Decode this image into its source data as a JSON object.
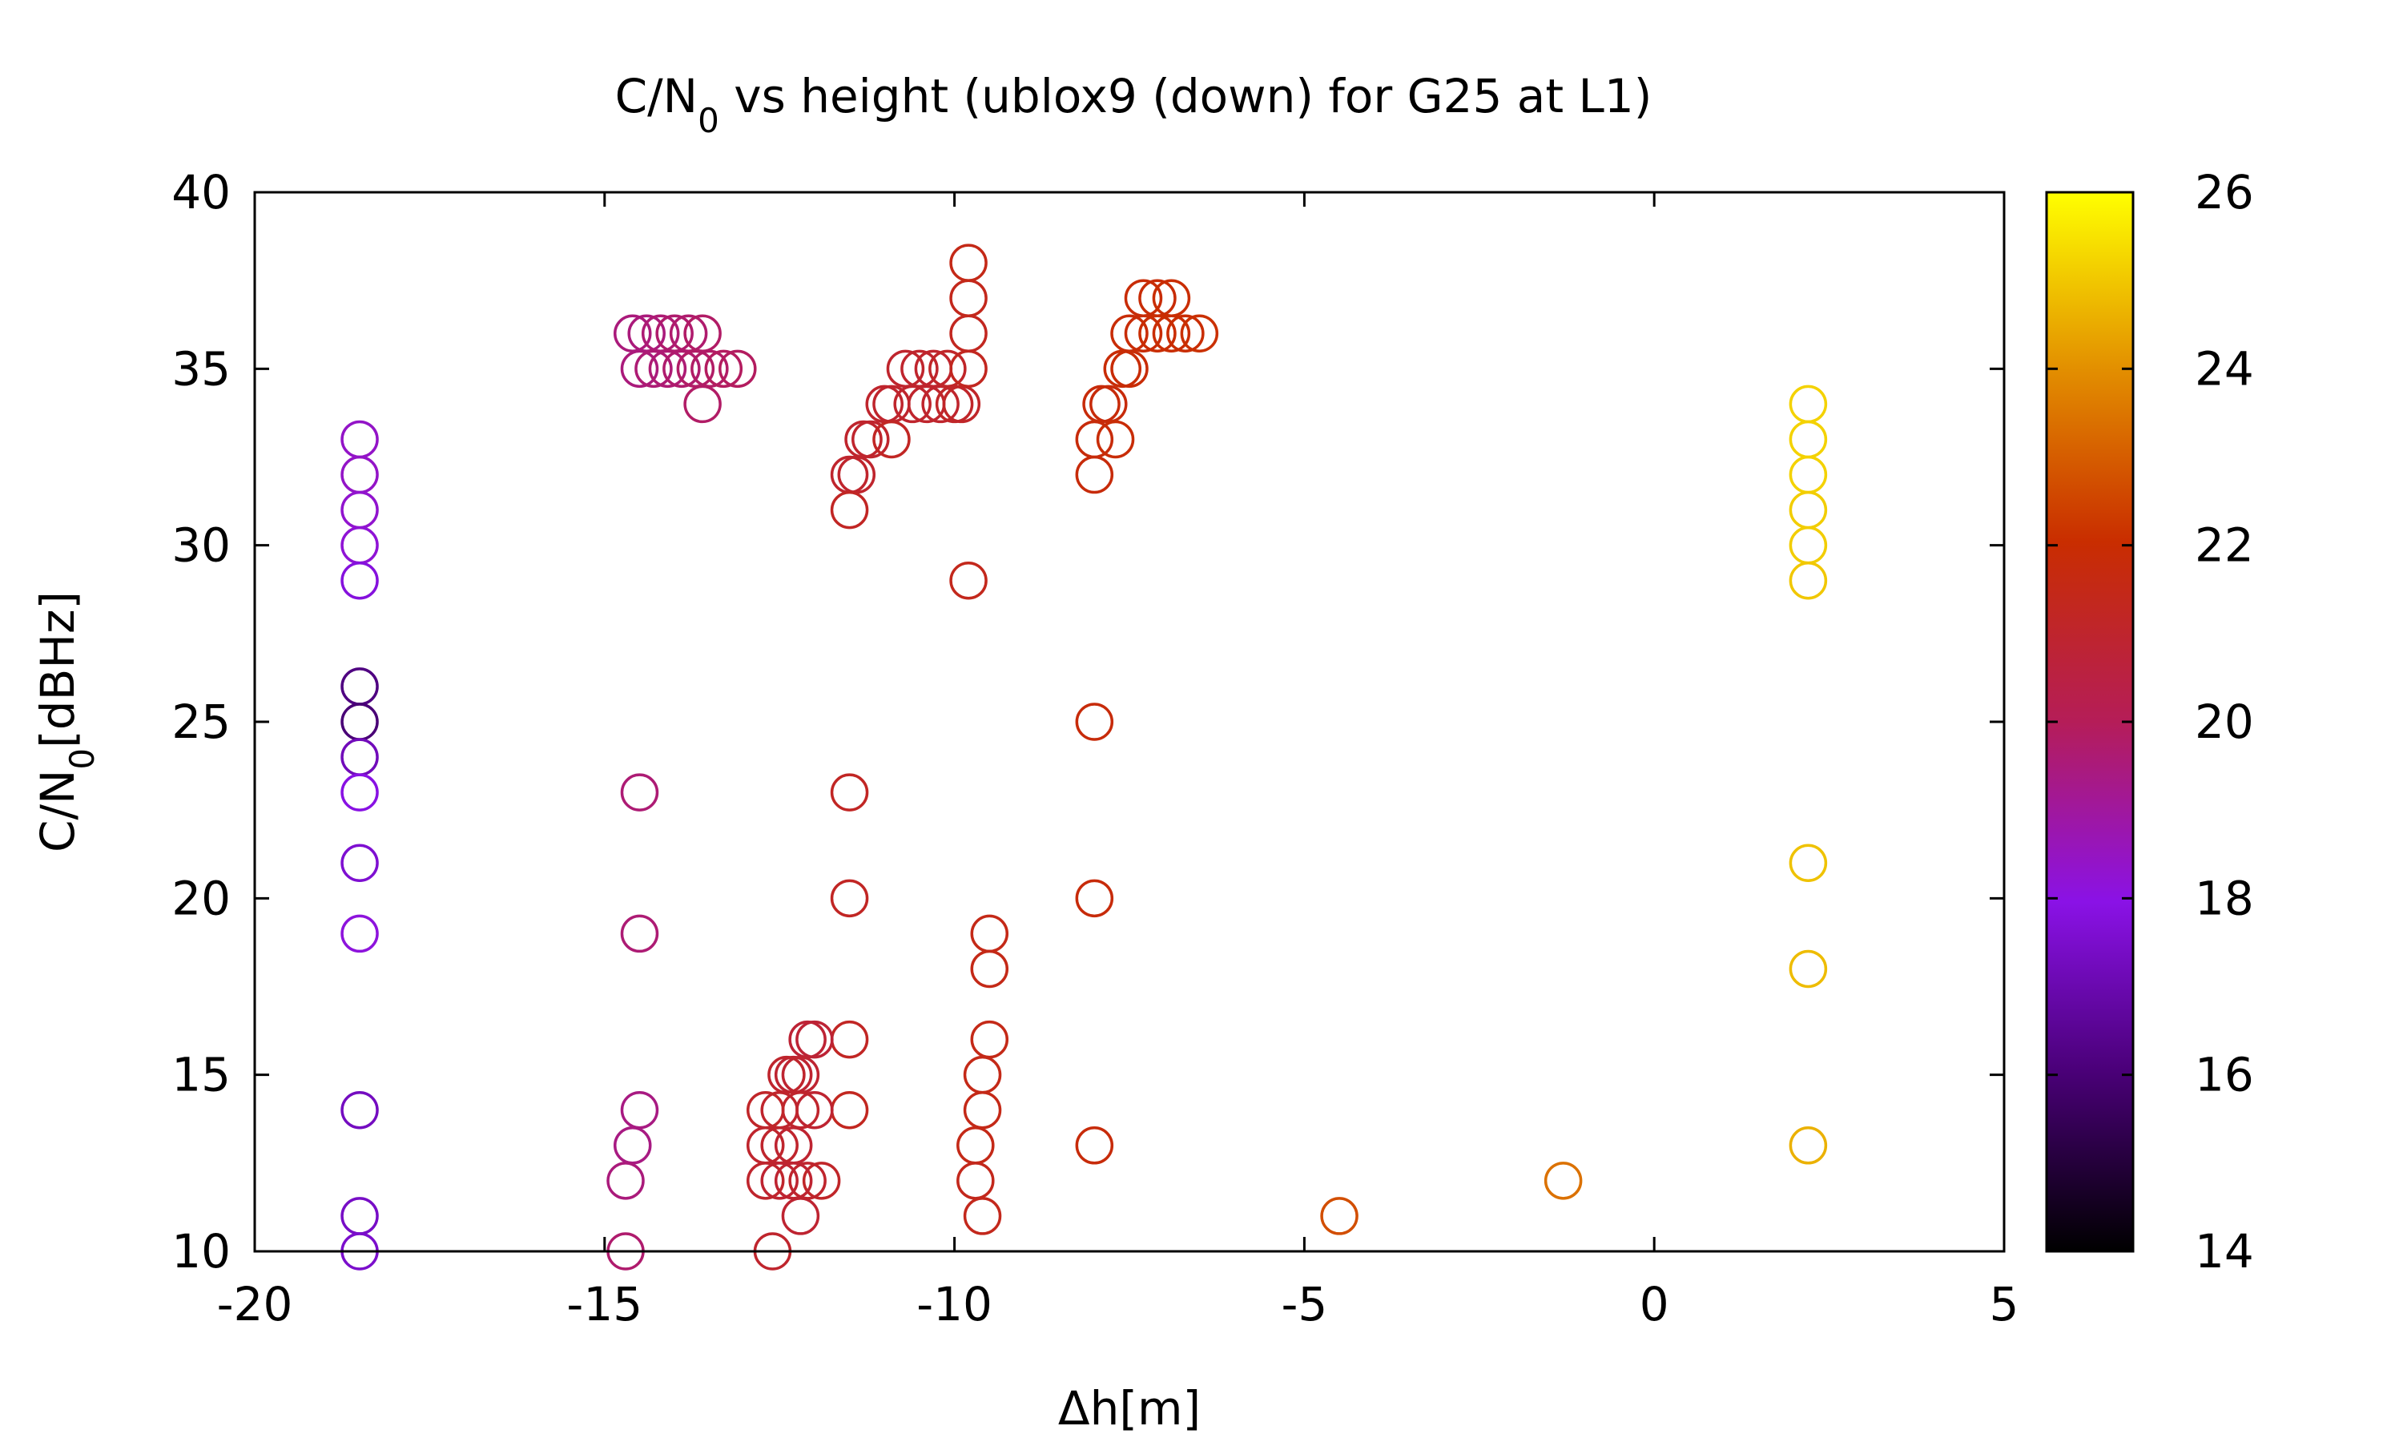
{
  "chart_data": {
    "type": "scatter",
    "title": "C/N0 vs height (ublox9 (down) for G25 at L1)",
    "title_parts": {
      "prefix": "C/N",
      "subscript": "0",
      "suffix": " vs height (ublox9 (down) for G25 at L1)"
    },
    "xlabel": "Δh[m]",
    "ylabel": "C/N0[dBHz]",
    "ylabel_parts": {
      "prefix": "C/N",
      "subscript": "0",
      "suffix": "[dBHz]"
    },
    "xlim": [
      -20,
      5
    ],
    "ylim": [
      10,
      40
    ],
    "xticks": [
      -20,
      -15,
      -10,
      -5,
      0,
      5
    ],
    "yticks": [
      10,
      15,
      20,
      25,
      30,
      35,
      40
    ],
    "grid": false,
    "colorbar": {
      "range": [
        14,
        26
      ],
      "ticks": [
        14,
        16,
        18,
        20,
        22,
        24,
        26
      ],
      "palette": "black-blue-purple-red-orange-yellow"
    },
    "marker": "open-circle",
    "points": [
      {
        "x": -18.5,
        "y": 33,
        "c": 18.4
      },
      {
        "x": -18.5,
        "y": 32,
        "c": 18.4
      },
      {
        "x": -18.5,
        "y": 31,
        "c": 18.3
      },
      {
        "x": -18.5,
        "y": 30,
        "c": 18.2
      },
      {
        "x": -18.5,
        "y": 29,
        "c": 17.8
      },
      {
        "x": -18.5,
        "y": 26,
        "c": 16.2
      },
      {
        "x": -18.5,
        "y": 25,
        "c": 16.0
      },
      {
        "x": -18.5,
        "y": 24,
        "c": 17.2
      },
      {
        "x": -18.5,
        "y": 23,
        "c": 17.9
      },
      {
        "x": -18.5,
        "y": 21,
        "c": 17.6
      },
      {
        "x": -18.5,
        "y": 19,
        "c": 18.1
      },
      {
        "x": -18.5,
        "y": 14,
        "c": 17.3
      },
      {
        "x": -18.5,
        "y": 11,
        "c": 17.4
      },
      {
        "x": -18.5,
        "y": 10,
        "c": 17.5
      },
      {
        "x": -14.6,
        "y": 36,
        "c": 19.5
      },
      {
        "x": -14.5,
        "y": 35,
        "c": 19.5
      },
      {
        "x": -14.4,
        "y": 36,
        "c": 19.5
      },
      {
        "x": -14.3,
        "y": 35,
        "c": 19.6
      },
      {
        "x": -14.2,
        "y": 36,
        "c": 19.6
      },
      {
        "x": -14.1,
        "y": 35,
        "c": 19.6
      },
      {
        "x": -14.0,
        "y": 36,
        "c": 19.7
      },
      {
        "x": -13.9,
        "y": 35,
        "c": 19.7
      },
      {
        "x": -13.8,
        "y": 36,
        "c": 19.7
      },
      {
        "x": -13.7,
        "y": 35,
        "c": 19.8
      },
      {
        "x": -13.6,
        "y": 34,
        "c": 19.8
      },
      {
        "x": -13.6,
        "y": 36,
        "c": 19.8
      },
      {
        "x": -13.5,
        "y": 35,
        "c": 19.8
      },
      {
        "x": -13.3,
        "y": 35,
        "c": 19.9
      },
      {
        "x": -13.1,
        "y": 35,
        "c": 19.9
      },
      {
        "x": -14.5,
        "y": 23,
        "c": 19.6
      },
      {
        "x": -14.5,
        "y": 19,
        "c": 19.6
      },
      {
        "x": -14.5,
        "y": 14,
        "c": 19.4
      },
      {
        "x": -14.6,
        "y": 13,
        "c": 19.4
      },
      {
        "x": -14.7,
        "y": 12,
        "c": 19.5
      },
      {
        "x": -14.7,
        "y": 10,
        "c": 19.7
      },
      {
        "x": -11.5,
        "y": 32,
        "c": 21.0
      },
      {
        "x": -11.4,
        "y": 32,
        "c": 21.0
      },
      {
        "x": -11.3,
        "y": 33,
        "c": 21.0
      },
      {
        "x": -11.2,
        "y": 33,
        "c": 21.0
      },
      {
        "x": -11.5,
        "y": 31,
        "c": 21.2
      },
      {
        "x": -11.0,
        "y": 34,
        "c": 21.0
      },
      {
        "x": -10.9,
        "y": 34,
        "c": 21.0
      },
      {
        "x": -10.9,
        "y": 33,
        "c": 21.2
      },
      {
        "x": -10.7,
        "y": 35,
        "c": 21.0
      },
      {
        "x": -10.6,
        "y": 34,
        "c": 21.0
      },
      {
        "x": -10.5,
        "y": 35,
        "c": 21.0
      },
      {
        "x": -10.4,
        "y": 34,
        "c": 21.0
      },
      {
        "x": -10.3,
        "y": 35,
        "c": 21.0
      },
      {
        "x": -10.2,
        "y": 34,
        "c": 21.0
      },
      {
        "x": -10.1,
        "y": 35,
        "c": 21.1
      },
      {
        "x": -10.0,
        "y": 34,
        "c": 21.1
      },
      {
        "x": -9.9,
        "y": 34,
        "c": 21.1
      },
      {
        "x": -9.8,
        "y": 35,
        "c": 21.3
      },
      {
        "x": -9.8,
        "y": 36,
        "c": 21.3
      },
      {
        "x": -9.8,
        "y": 37,
        "c": 21.4
      },
      {
        "x": -9.8,
        "y": 38,
        "c": 21.5
      },
      {
        "x": -9.8,
        "y": 29,
        "c": 21.4
      },
      {
        "x": -8.0,
        "y": 32,
        "c": 21.8
      },
      {
        "x": -8.0,
        "y": 33,
        "c": 21.8
      },
      {
        "x": -7.9,
        "y": 34,
        "c": 21.8
      },
      {
        "x": -7.8,
        "y": 34,
        "c": 21.8
      },
      {
        "x": -7.7,
        "y": 33,
        "c": 21.9
      },
      {
        "x": -7.6,
        "y": 35,
        "c": 21.9
      },
      {
        "x": -7.5,
        "y": 35,
        "c": 21.9
      },
      {
        "x": -7.5,
        "y": 36,
        "c": 21.9
      },
      {
        "x": -7.3,
        "y": 37,
        "c": 21.9
      },
      {
        "x": -7.3,
        "y": 36,
        "c": 21.9
      },
      {
        "x": -7.1,
        "y": 37,
        "c": 21.9
      },
      {
        "x": -7.1,
        "y": 36,
        "c": 22.0
      },
      {
        "x": -6.9,
        "y": 37,
        "c": 22.0
      },
      {
        "x": -6.9,
        "y": 36,
        "c": 22.0
      },
      {
        "x": -6.7,
        "y": 36,
        "c": 22.0
      },
      {
        "x": -6.5,
        "y": 36,
        "c": 22.1
      },
      {
        "x": -11.5,
        "y": 23,
        "c": 21.2
      },
      {
        "x": -11.5,
        "y": 20,
        "c": 21.2
      },
      {
        "x": -11.5,
        "y": 16,
        "c": 21.2
      },
      {
        "x": -11.5,
        "y": 14,
        "c": 21.3
      },
      {
        "x": -12.0,
        "y": 16,
        "c": 20.8
      },
      {
        "x": -12.1,
        "y": 16,
        "c": 20.8
      },
      {
        "x": -12.2,
        "y": 15,
        "c": 20.9
      },
      {
        "x": -12.3,
        "y": 15,
        "c": 20.9
      },
      {
        "x": -12.4,
        "y": 15,
        "c": 21.0
      },
      {
        "x": -12.0,
        "y": 14,
        "c": 20.9
      },
      {
        "x": -12.2,
        "y": 14,
        "c": 21.0
      },
      {
        "x": -12.5,
        "y": 14,
        "c": 21.0
      },
      {
        "x": -12.7,
        "y": 14,
        "c": 21.1
      },
      {
        "x": -12.3,
        "y": 13,
        "c": 20.9
      },
      {
        "x": -12.5,
        "y": 13,
        "c": 21.0
      },
      {
        "x": -12.7,
        "y": 13,
        "c": 21.0
      },
      {
        "x": -11.9,
        "y": 12,
        "c": 21.1
      },
      {
        "x": -12.1,
        "y": 12,
        "c": 21.0
      },
      {
        "x": -12.3,
        "y": 12,
        "c": 20.9
      },
      {
        "x": -12.5,
        "y": 12,
        "c": 20.9
      },
      {
        "x": -12.7,
        "y": 12,
        "c": 21.0
      },
      {
        "x": -12.2,
        "y": 11,
        "c": 20.9
      },
      {
        "x": -12.6,
        "y": 10,
        "c": 21.0
      },
      {
        "x": -9.5,
        "y": 19,
        "c": 21.5
      },
      {
        "x": -9.5,
        "y": 18,
        "c": 21.5
      },
      {
        "x": -9.5,
        "y": 16,
        "c": 21.5
      },
      {
        "x": -9.6,
        "y": 15,
        "c": 21.5
      },
      {
        "x": -9.6,
        "y": 14,
        "c": 21.5
      },
      {
        "x": -9.7,
        "y": 13,
        "c": 21.5
      },
      {
        "x": -9.7,
        "y": 12,
        "c": 21.4
      },
      {
        "x": -9.6,
        "y": 11,
        "c": 21.4
      },
      {
        "x": -8.0,
        "y": 25,
        "c": 21.8
      },
      {
        "x": -8.0,
        "y": 20,
        "c": 21.8
      },
      {
        "x": -8.0,
        "y": 13,
        "c": 21.8
      },
      {
        "x": -4.5,
        "y": 11,
        "c": 22.7
      },
      {
        "x": -1.3,
        "y": 12,
        "c": 23.4
      },
      {
        "x": 2.2,
        "y": 34,
        "c": 25.2
      },
      {
        "x": 2.2,
        "y": 33,
        "c": 25.2
      },
      {
        "x": 2.2,
        "y": 32,
        "c": 25.2
      },
      {
        "x": 2.2,
        "y": 31,
        "c": 25.1
      },
      {
        "x": 2.2,
        "y": 30,
        "c": 25.1
      },
      {
        "x": 2.2,
        "y": 29,
        "c": 25.0
      },
      {
        "x": 2.2,
        "y": 21,
        "c": 24.9
      },
      {
        "x": 2.2,
        "y": 18,
        "c": 24.8
      },
      {
        "x": 2.2,
        "y": 13,
        "c": 24.6
      }
    ]
  }
}
